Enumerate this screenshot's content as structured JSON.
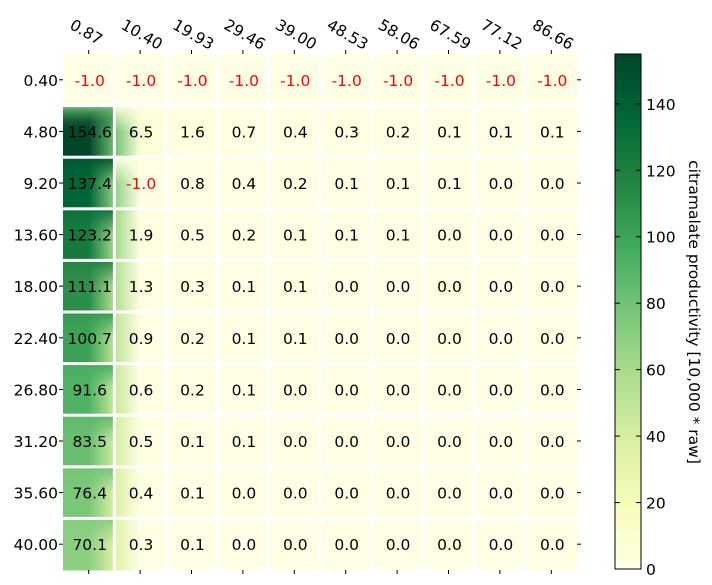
{
  "chart_data": {
    "type": "heatmap",
    "x": [
      "0.87",
      "10.40",
      "19.93",
      "29.46",
      "39.00",
      "48.53",
      "58.06",
      "67.59",
      "77.12",
      "86.66"
    ],
    "y": [
      "0.40",
      "4.80",
      "9.20",
      "13.60",
      "18.00",
      "22.40",
      "26.80",
      "31.20",
      "35.60",
      "40.00"
    ],
    "values": [
      [
        -1.0,
        -1.0,
        -1.0,
        -1.0,
        -1.0,
        -1.0,
        -1.0,
        -1.0,
        -1.0,
        -1.0
      ],
      [
        154.6,
        6.5,
        1.6,
        0.7,
        0.4,
        0.3,
        0.2,
        0.1,
        0.1,
        0.1
      ],
      [
        137.4,
        -1.0,
        0.8,
        0.4,
        0.2,
        0.1,
        0.1,
        0.1,
        0.0,
        0.0
      ],
      [
        123.2,
        1.9,
        0.5,
        0.2,
        0.1,
        0.1,
        0.1,
        0.0,
        0.0,
        0.0
      ],
      [
        111.1,
        1.3,
        0.3,
        0.1,
        0.1,
        0.0,
        0.0,
        0.0,
        0.0,
        0.0
      ],
      [
        100.7,
        0.9,
        0.2,
        0.1,
        0.1,
        0.0,
        0.0,
        0.0,
        0.0,
        0.0
      ],
      [
        91.6,
        0.6,
        0.2,
        0.1,
        0.0,
        0.0,
        0.0,
        0.0,
        0.0,
        0.0
      ],
      [
        83.5,
        0.5,
        0.1,
        0.1,
        0.0,
        0.0,
        0.0,
        0.0,
        0.0,
        0.0
      ],
      [
        76.4,
        0.4,
        0.1,
        0.0,
        0.0,
        0.0,
        0.0,
        0.0,
        0.0,
        0.0
      ],
      [
        70.1,
        0.3,
        0.1,
        0.0,
        0.0,
        0.0,
        0.0,
        0.0,
        0.0,
        0.0
      ]
    ],
    "cell_labels": [
      [
        "-1.0",
        "-1.0",
        "-1.0",
        "-1.0",
        "-1.0",
        "-1.0",
        "-1.0",
        "-1.0",
        "-1.0",
        "-1.0"
      ],
      [
        "154.6",
        "6.5",
        "1.6",
        "0.7",
        "0.4",
        "0.3",
        "0.2",
        "0.1",
        "0.1",
        "0.1"
      ],
      [
        "137.4",
        "-1.0",
        "0.8",
        "0.4",
        "0.2",
        "0.1",
        "0.1",
        "0.1",
        "0.0",
        "0.0"
      ],
      [
        "123.2",
        "1.9",
        "0.5",
        "0.2",
        "0.1",
        "0.1",
        "0.1",
        "0.0",
        "0.0",
        "0.0"
      ],
      [
        "111.1",
        "1.3",
        "0.3",
        "0.1",
        "0.1",
        "0.0",
        "0.0",
        "0.0",
        "0.0",
        "0.0"
      ],
      [
        "100.7",
        "0.9",
        "0.2",
        "0.1",
        "0.1",
        "0.0",
        "0.0",
        "0.0",
        "0.0",
        "0.0"
      ],
      [
        "91.6",
        "0.6",
        "0.2",
        "0.1",
        "0.0",
        "0.0",
        "0.0",
        "0.0",
        "0.0",
        "0.0"
      ],
      [
        "83.5",
        "0.5",
        "0.1",
        "0.1",
        "0.0",
        "0.0",
        "0.0",
        "0.0",
        "0.0",
        "0.0"
      ],
      [
        "76.4",
        "0.4",
        "0.1",
        "0.0",
        "0.0",
        "0.0",
        "0.0",
        "0.0",
        "0.0",
        "0.0"
      ],
      [
        "70.1",
        "0.3",
        "0.1",
        "0.0",
        "0.0",
        "0.0",
        "0.0",
        "0.0",
        "0.0",
        "0.0"
      ]
    ],
    "invalid_value": -1.0,
    "invalid_label_color": "#ff0000",
    "colormap": "YlGn",
    "colormap_stops": [
      "#ffffe5",
      "#f7fcb9",
      "#d9f0a3",
      "#addd8e",
      "#78c679",
      "#41ab5d",
      "#238443",
      "#006837",
      "#004529"
    ],
    "color_range": [
      0,
      155
    ],
    "colorbar": {
      "label": "citramalate productivity [10,000 * raw]",
      "ticks": [
        "0",
        "20",
        "40",
        "60",
        "80",
        "100",
        "120",
        "140"
      ],
      "tick_values": [
        0,
        20,
        40,
        60,
        80,
        100,
        120,
        140
      ],
      "position": "right"
    },
    "xlabel": "",
    "ylabel": "",
    "title": "",
    "x_tick_position": "top",
    "x_tick_rotation": "-30deg",
    "grid": false,
    "cell_separator_color": "#ffffff",
    "interpolation": "smoothed"
  }
}
